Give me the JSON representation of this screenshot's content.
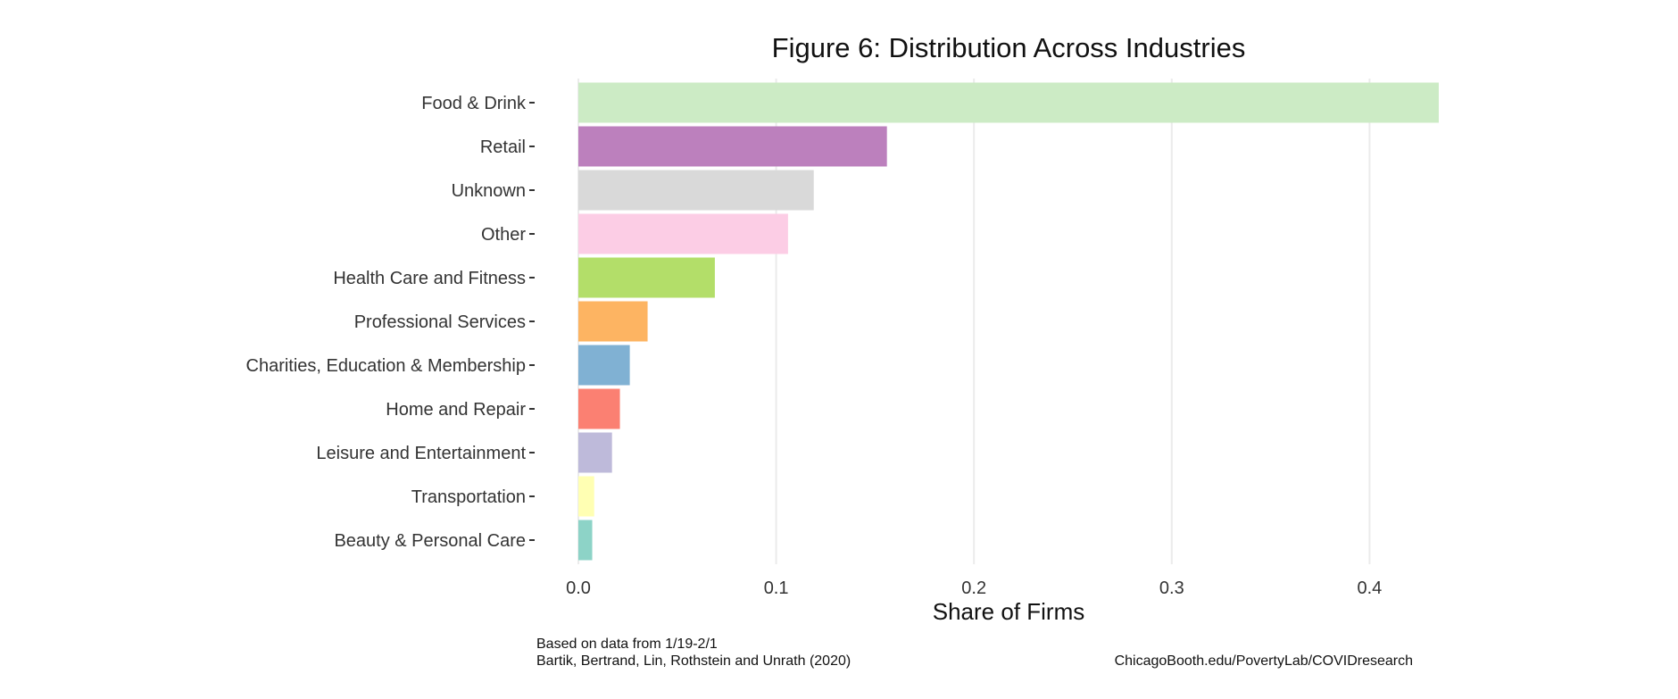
{
  "chart_data": {
    "type": "bar",
    "orientation": "horizontal",
    "title": "Figure 6: Distribution Across Industries",
    "xlabel": "Share of Firms",
    "ylabel": "",
    "xlim": [
      0,
      0.44
    ],
    "x_ticks": [
      0.0,
      0.1,
      0.2,
      0.3,
      0.4
    ],
    "x_tick_labels": [
      "0.0",
      "0.1",
      "0.2",
      "0.3",
      "0.4"
    ],
    "grid": "vertical major gridlines",
    "legend": "none",
    "categories": [
      "Food & Drink",
      "Retail",
      "Unknown",
      "Other",
      "Health Care and Fitness",
      "Professional Services",
      "Charities, Education & Membership",
      "Home and Repair",
      "Leisure and Entertainment",
      "Transportation",
      "Beauty & Personal Care"
    ],
    "values": [
      0.435,
      0.156,
      0.119,
      0.106,
      0.069,
      0.035,
      0.026,
      0.021,
      0.017,
      0.008,
      0.007
    ],
    "colors": [
      "#ccebc5",
      "#bc80bd",
      "#d9d9d9",
      "#fccde5",
      "#b3de69",
      "#fdb462",
      "#80b1d3",
      "#fb8072",
      "#bebada",
      "#ffffb3",
      "#8dd3c7"
    ]
  },
  "footnotes": {
    "data_range": "Based on data from 1/19-2/1",
    "citation": "Bartik, Bertrand, Lin, Rothstein and Unrath (2020)",
    "url": "ChicagoBooth.edu/PovertyLab/COVIDresearch"
  }
}
